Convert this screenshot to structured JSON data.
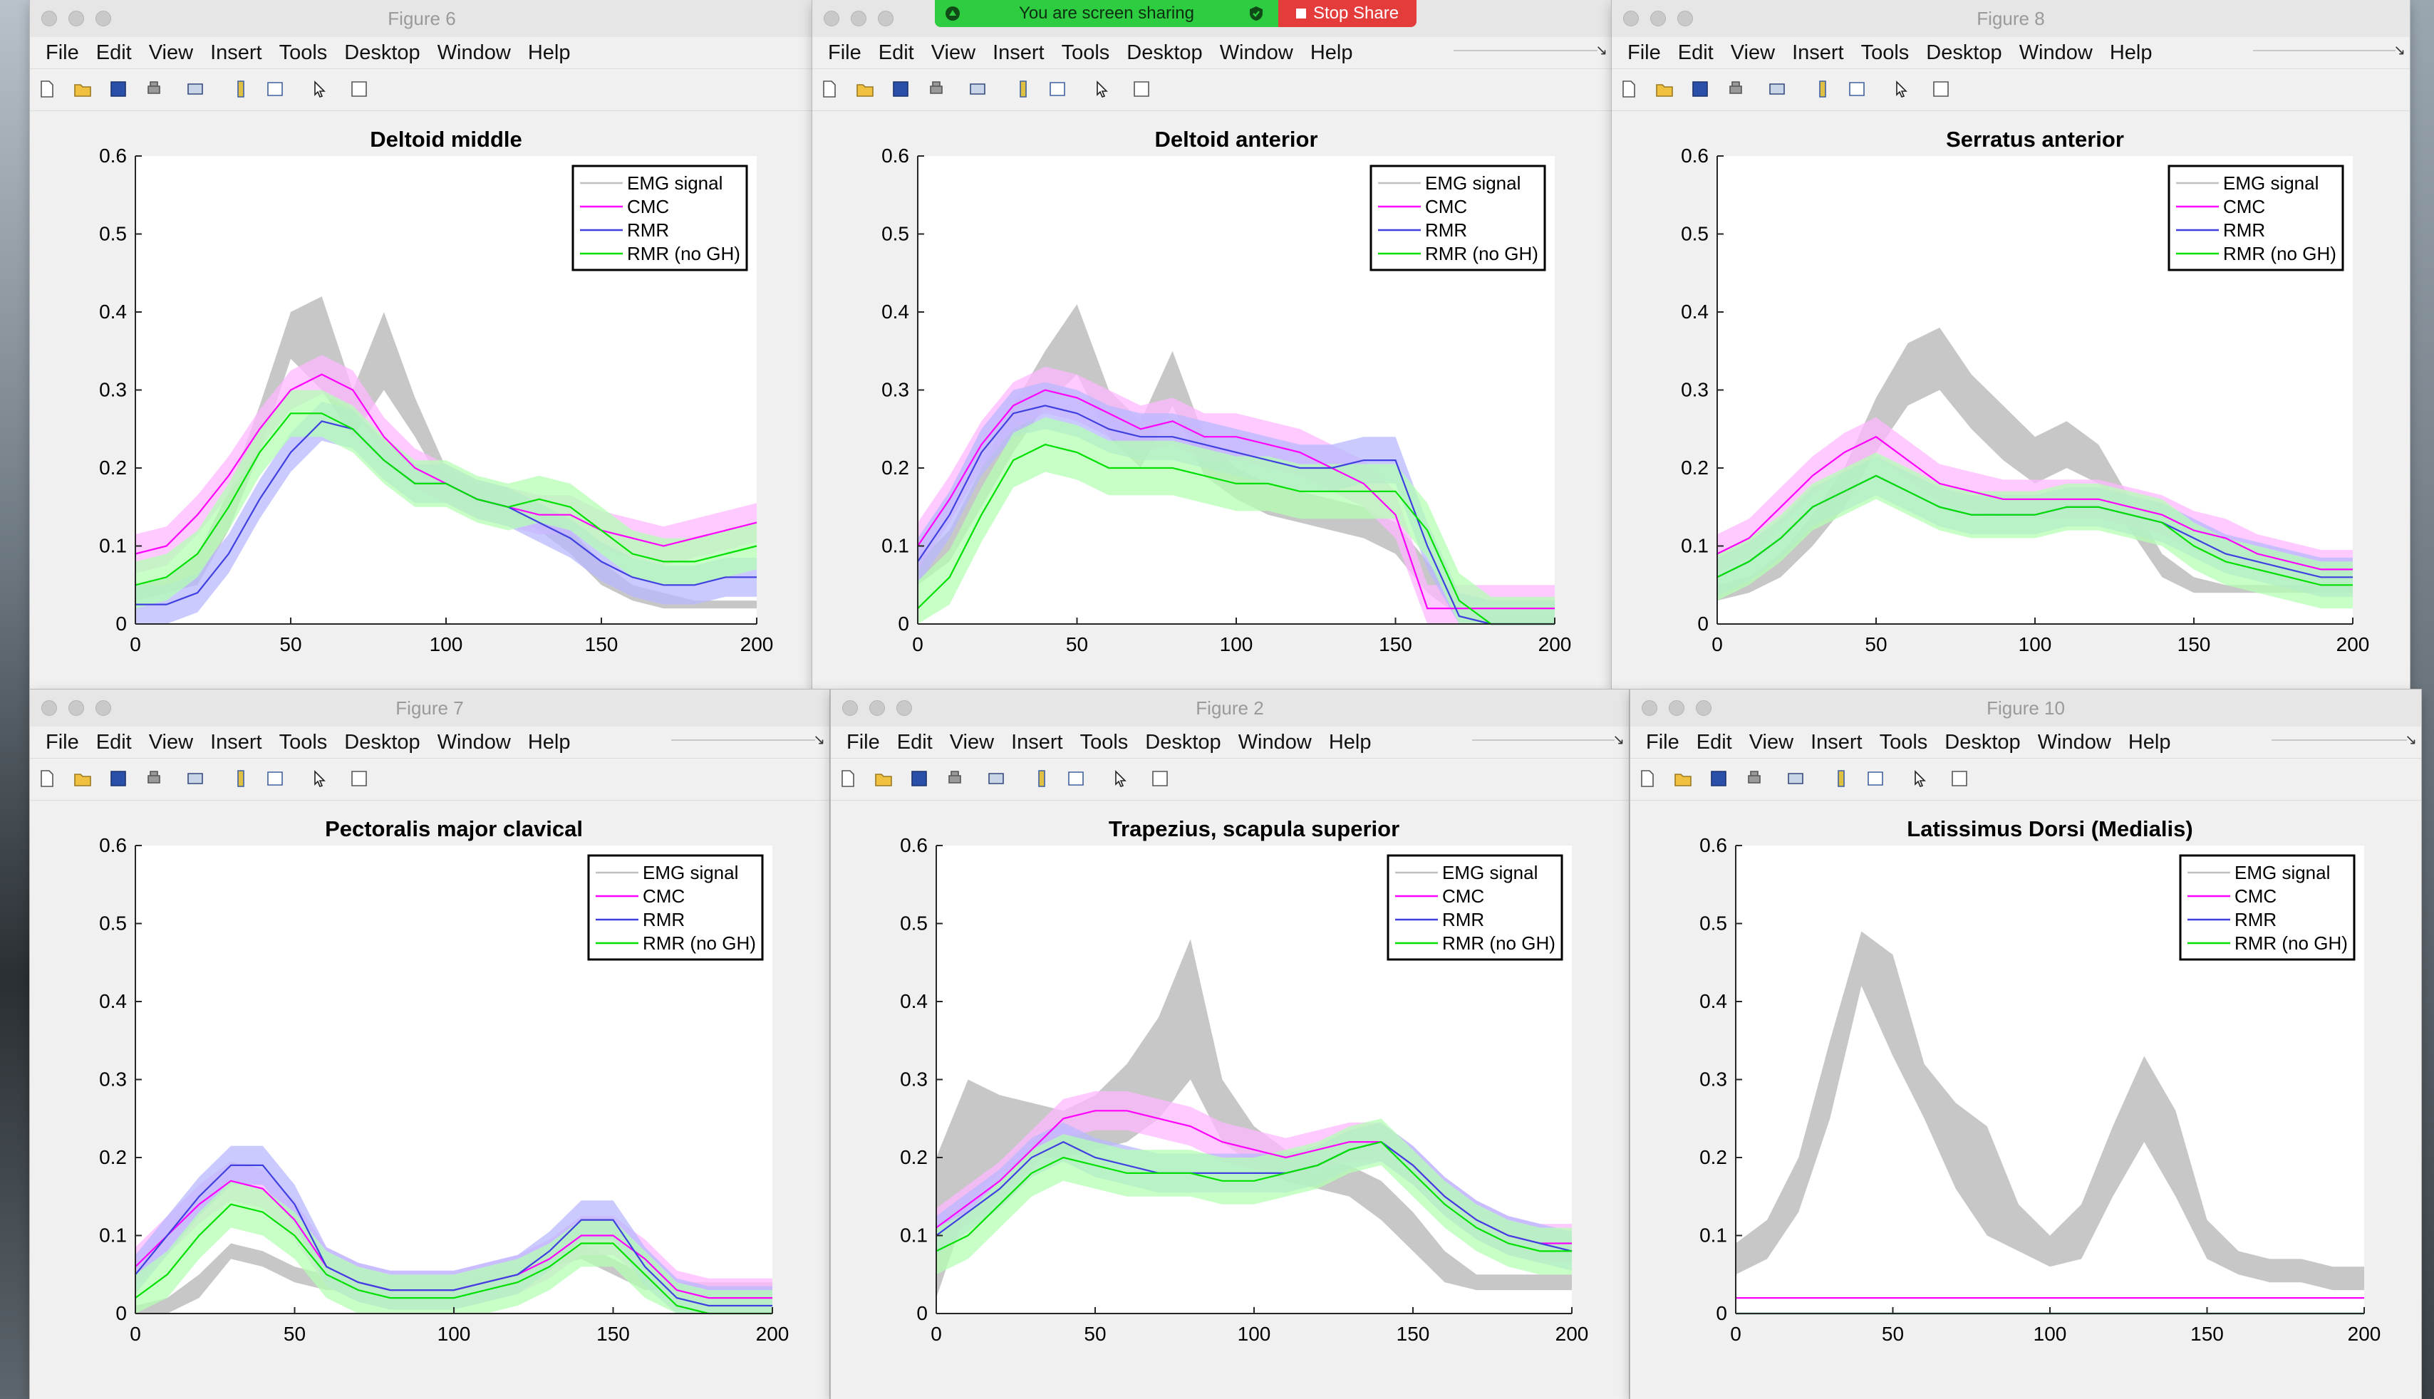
{
  "screen_share": {
    "message": "You are screen sharing",
    "stop_label": "Stop Share",
    "bar_color": "#2ecc40",
    "stop_color": "#e43b3b"
  },
  "menu": [
    "File",
    "Edit",
    "View",
    "Insert",
    "Tools",
    "Desktop",
    "Window",
    "Help"
  ],
  "legend": {
    "labels": [
      "EMG signal",
      "CMC",
      "RMR",
      "RMR (no GH)"
    ],
    "colors": [
      "#c0c0c0",
      "#ff00ff",
      "#4040e0",
      "#00e000"
    ]
  },
  "windows": [
    {
      "id": "fig6",
      "title": "Figure 6",
      "plot_title": "Deltoid middle"
    },
    {
      "id": "fig1",
      "title": "",
      "plot_title": "Deltoid anterior"
    },
    {
      "id": "fig8",
      "title": "Figure 8",
      "plot_title": "Serratus anterior"
    },
    {
      "id": "fig7",
      "title": "Figure 7",
      "plot_title": "Pectoralis major clavical"
    },
    {
      "id": "fig2",
      "title": "Figure 2",
      "plot_title": "Trapezius, scapula superior"
    },
    {
      "id": "fig10",
      "title": "Figure 10",
      "plot_title": "Latissimus Dorsi (Medialis)"
    }
  ],
  "chart_data": [
    {
      "type": "area",
      "title": "Deltoid middle",
      "xlim": [
        0,
        200
      ],
      "ylim": [
        0,
        0.6
      ],
      "xticks": [
        0,
        50,
        100,
        150,
        200
      ],
      "yticks": [
        0,
        0.1,
        0.2,
        0.3,
        0.4,
        0.5,
        0.6
      ],
      "legend": "top-right",
      "x": [
        0,
        10,
        20,
        30,
        40,
        50,
        60,
        70,
        80,
        90,
        100,
        110,
        120,
        130,
        140,
        150,
        160,
        170,
        180,
        190,
        200
      ],
      "series": [
        {
          "name": "EMG signal",
          "lower": [
            0.03,
            0.04,
            0.05,
            0.12,
            0.22,
            0.34,
            0.3,
            0.24,
            0.3,
            0.24,
            0.17,
            0.15,
            0.14,
            0.12,
            0.09,
            0.05,
            0.03,
            0.02,
            0.02,
            0.02,
            0.02
          ],
          "upper": [
            0.05,
            0.06,
            0.09,
            0.17,
            0.28,
            0.4,
            0.42,
            0.3,
            0.4,
            0.29,
            0.2,
            0.18,
            0.17,
            0.15,
            0.12,
            0.08,
            0.05,
            0.04,
            0.03,
            0.03,
            0.03
          ]
        },
        {
          "name": "CMC",
          "mean": [
            0.09,
            0.1,
            0.14,
            0.19,
            0.25,
            0.3,
            0.32,
            0.3,
            0.24,
            0.2,
            0.18,
            0.16,
            0.15,
            0.14,
            0.14,
            0.12,
            0.11,
            0.1,
            0.11,
            0.12,
            0.13
          ],
          "band": 0.025
        },
        {
          "name": "RMR",
          "mean": [
            0.025,
            0.025,
            0.04,
            0.09,
            0.16,
            0.22,
            0.26,
            0.25,
            0.21,
            0.18,
            0.18,
            0.16,
            0.15,
            0.13,
            0.11,
            0.08,
            0.06,
            0.05,
            0.05,
            0.06,
            0.06
          ],
          "band": 0.025
        },
        {
          "name": "RMR (no GH)",
          "mean": [
            0.05,
            0.06,
            0.09,
            0.15,
            0.22,
            0.27,
            0.27,
            0.25,
            0.21,
            0.18,
            0.18,
            0.16,
            0.15,
            0.16,
            0.15,
            0.12,
            0.09,
            0.08,
            0.08,
            0.09,
            0.1
          ],
          "band": 0.03
        }
      ]
    },
    {
      "type": "area",
      "title": "Deltoid anterior",
      "xlim": [
        0,
        200
      ],
      "ylim": [
        0,
        0.6
      ],
      "xticks": [
        0,
        50,
        100,
        150,
        200
      ],
      "yticks": [
        0,
        0.1,
        0.2,
        0.3,
        0.4,
        0.5,
        0.6
      ],
      "legend": "top-right",
      "x": [
        0,
        10,
        20,
        30,
        40,
        50,
        60,
        70,
        80,
        90,
        100,
        110,
        120,
        130,
        140,
        150,
        160,
        170,
        180,
        190,
        200
      ],
      "series": [
        {
          "name": "EMG signal",
          "lower": [
            0.05,
            0.08,
            0.15,
            0.22,
            0.28,
            0.32,
            0.24,
            0.2,
            0.28,
            0.19,
            0.16,
            0.14,
            0.13,
            0.12,
            0.11,
            0.09,
            0.04,
            0.01,
            0.0,
            0.0,
            0.0
          ],
          "upper": [
            0.08,
            0.12,
            0.2,
            0.28,
            0.35,
            0.41,
            0.3,
            0.26,
            0.35,
            0.24,
            0.2,
            0.18,
            0.17,
            0.16,
            0.15,
            0.13,
            0.08,
            0.03,
            0.01,
            0.01,
            0.01
          ]
        },
        {
          "name": "CMC",
          "mean": [
            0.1,
            0.16,
            0.23,
            0.28,
            0.3,
            0.29,
            0.27,
            0.25,
            0.26,
            0.24,
            0.24,
            0.23,
            0.22,
            0.2,
            0.18,
            0.14,
            0.02,
            0.02,
            0.02,
            0.02,
            0.02
          ],
          "band": 0.03
        },
        {
          "name": "RMR",
          "mean": [
            0.08,
            0.14,
            0.22,
            0.27,
            0.28,
            0.27,
            0.25,
            0.24,
            0.24,
            0.23,
            0.22,
            0.21,
            0.2,
            0.2,
            0.21,
            0.21,
            0.1,
            0.01,
            0.0,
            0.0,
            0.0
          ],
          "band": 0.03
        },
        {
          "name": "RMR (no GH)",
          "mean": [
            0.02,
            0.06,
            0.14,
            0.21,
            0.23,
            0.22,
            0.2,
            0.2,
            0.2,
            0.19,
            0.18,
            0.18,
            0.17,
            0.17,
            0.17,
            0.17,
            0.12,
            0.03,
            0.0,
            0.0,
            0.0
          ],
          "band": 0.035
        }
      ]
    },
    {
      "type": "area",
      "title": "Serratus anterior",
      "xlim": [
        0,
        200
      ],
      "ylim": [
        0,
        0.6
      ],
      "xticks": [
        0,
        50,
        100,
        150,
        200
      ],
      "yticks": [
        0,
        0.1,
        0.2,
        0.3,
        0.4,
        0.5,
        0.6
      ],
      "legend": "top-right",
      "x": [
        0,
        10,
        20,
        30,
        40,
        50,
        60,
        70,
        80,
        90,
        100,
        110,
        120,
        130,
        140,
        150,
        160,
        170,
        180,
        190,
        200
      ],
      "series": [
        {
          "name": "EMG signal",
          "lower": [
            0.03,
            0.04,
            0.06,
            0.1,
            0.15,
            0.22,
            0.28,
            0.3,
            0.25,
            0.21,
            0.18,
            0.2,
            0.18,
            0.12,
            0.06,
            0.04,
            0.04,
            0.04,
            0.04,
            0.04,
            0.04
          ],
          "upper": [
            0.05,
            0.06,
            0.09,
            0.14,
            0.2,
            0.29,
            0.36,
            0.38,
            0.32,
            0.28,
            0.24,
            0.26,
            0.23,
            0.16,
            0.09,
            0.06,
            0.05,
            0.05,
            0.05,
            0.05,
            0.05
          ]
        },
        {
          "name": "CMC",
          "mean": [
            0.09,
            0.11,
            0.15,
            0.19,
            0.22,
            0.24,
            0.21,
            0.18,
            0.17,
            0.16,
            0.16,
            0.16,
            0.16,
            0.15,
            0.14,
            0.12,
            0.11,
            0.09,
            0.08,
            0.07,
            0.07
          ],
          "band": 0.025
        },
        {
          "name": "RMR",
          "mean": [
            0.06,
            0.08,
            0.11,
            0.15,
            0.17,
            0.19,
            0.17,
            0.15,
            0.14,
            0.14,
            0.14,
            0.15,
            0.15,
            0.14,
            0.13,
            0.11,
            0.09,
            0.08,
            0.07,
            0.06,
            0.06
          ],
          "band": 0.025
        },
        {
          "name": "RMR (no GH)",
          "mean": [
            0.06,
            0.08,
            0.11,
            0.15,
            0.17,
            0.19,
            0.17,
            0.15,
            0.14,
            0.14,
            0.14,
            0.15,
            0.15,
            0.14,
            0.13,
            0.1,
            0.08,
            0.07,
            0.06,
            0.05,
            0.05
          ],
          "band": 0.03
        }
      ]
    },
    {
      "type": "area",
      "title": "Pectoralis major clavical",
      "xlim": [
        0,
        200
      ],
      "ylim": [
        0,
        0.6
      ],
      "xticks": [
        0,
        50,
        100,
        150,
        200
      ],
      "yticks": [
        0,
        0.1,
        0.2,
        0.3,
        0.4,
        0.5,
        0.6
      ],
      "legend": "top-right",
      "x": [
        0,
        10,
        20,
        30,
        40,
        50,
        60,
        70,
        80,
        90,
        100,
        110,
        120,
        130,
        140,
        150,
        160,
        170,
        180,
        190,
        200
      ],
      "series": [
        {
          "name": "EMG signal",
          "lower": [
            0.0,
            0.0,
            0.02,
            0.07,
            0.06,
            0.04,
            0.03,
            0.03,
            0.03,
            0.03,
            0.03,
            0.03,
            0.04,
            0.06,
            0.07,
            0.05,
            0.03,
            0.03,
            0.03,
            0.03,
            0.03
          ],
          "upper": [
            0.01,
            0.02,
            0.05,
            0.09,
            0.08,
            0.06,
            0.05,
            0.04,
            0.04,
            0.04,
            0.04,
            0.05,
            0.06,
            0.08,
            0.09,
            0.07,
            0.05,
            0.04,
            0.04,
            0.04,
            0.04
          ]
        },
        {
          "name": "CMC",
          "mean": [
            0.06,
            0.1,
            0.14,
            0.17,
            0.16,
            0.12,
            0.06,
            0.04,
            0.03,
            0.03,
            0.03,
            0.04,
            0.05,
            0.07,
            0.1,
            0.1,
            0.07,
            0.03,
            0.02,
            0.02,
            0.02
          ],
          "band": 0.025
        },
        {
          "name": "RMR",
          "mean": [
            0.05,
            0.1,
            0.15,
            0.19,
            0.19,
            0.14,
            0.06,
            0.04,
            0.03,
            0.03,
            0.03,
            0.04,
            0.05,
            0.08,
            0.12,
            0.12,
            0.06,
            0.02,
            0.01,
            0.01,
            0.01
          ],
          "band": 0.025
        },
        {
          "name": "RMR (no GH)",
          "mean": [
            0.02,
            0.05,
            0.1,
            0.14,
            0.13,
            0.1,
            0.05,
            0.03,
            0.02,
            0.02,
            0.02,
            0.03,
            0.04,
            0.06,
            0.09,
            0.09,
            0.05,
            0.01,
            0.0,
            0.0,
            0.0
          ],
          "band": 0.03
        }
      ]
    },
    {
      "type": "area",
      "title": "Trapezius, scapula superior",
      "xlim": [
        0,
        200
      ],
      "ylim": [
        0,
        0.6
      ],
      "xticks": [
        0,
        50,
        100,
        150,
        200
      ],
      "yticks": [
        0,
        0.1,
        0.2,
        0.3,
        0.4,
        0.5,
        0.6
      ],
      "legend": "top-right",
      "x": [
        0,
        10,
        20,
        30,
        40,
        50,
        60,
        70,
        80,
        90,
        100,
        110,
        120,
        130,
        140,
        150,
        160,
        170,
        180,
        190,
        200
      ],
      "series": [
        {
          "name": "EMG signal",
          "lower": [
            0.02,
            0.14,
            0.18,
            0.2,
            0.2,
            0.21,
            0.22,
            0.25,
            0.3,
            0.22,
            0.19,
            0.17,
            0.16,
            0.15,
            0.12,
            0.08,
            0.04,
            0.03,
            0.03,
            0.03,
            0.03
          ],
          "upper": [
            0.2,
            0.3,
            0.28,
            0.27,
            0.26,
            0.28,
            0.32,
            0.38,
            0.48,
            0.3,
            0.24,
            0.21,
            0.2,
            0.19,
            0.17,
            0.13,
            0.08,
            0.05,
            0.05,
            0.05,
            0.05
          ]
        },
        {
          "name": "CMC",
          "mean": [
            0.11,
            0.14,
            0.17,
            0.21,
            0.25,
            0.26,
            0.26,
            0.25,
            0.24,
            0.22,
            0.21,
            0.2,
            0.21,
            0.22,
            0.22,
            0.19,
            0.15,
            0.12,
            0.1,
            0.09,
            0.09
          ],
          "band": 0.025
        },
        {
          "name": "RMR",
          "mean": [
            0.1,
            0.13,
            0.16,
            0.2,
            0.22,
            0.2,
            0.19,
            0.18,
            0.18,
            0.18,
            0.18,
            0.18,
            0.19,
            0.21,
            0.22,
            0.19,
            0.15,
            0.12,
            0.1,
            0.09,
            0.08
          ],
          "band": 0.025
        },
        {
          "name": "RMR (no GH)",
          "mean": [
            0.08,
            0.1,
            0.14,
            0.18,
            0.2,
            0.19,
            0.18,
            0.18,
            0.18,
            0.17,
            0.17,
            0.18,
            0.19,
            0.21,
            0.22,
            0.18,
            0.14,
            0.11,
            0.09,
            0.08,
            0.08
          ],
          "band": 0.03
        }
      ]
    },
    {
      "type": "area",
      "title": "Latissimus Dorsi (Medialis)",
      "xlim": [
        0,
        200
      ],
      "ylim": [
        0,
        0.6
      ],
      "xticks": [
        0,
        50,
        100,
        150,
        200
      ],
      "yticks": [
        0,
        0.1,
        0.2,
        0.3,
        0.4,
        0.5,
        0.6
      ],
      "legend": "top-right",
      "x": [
        0,
        10,
        20,
        30,
        40,
        50,
        60,
        70,
        80,
        90,
        100,
        110,
        120,
        130,
        140,
        150,
        160,
        170,
        180,
        190,
        200
      ],
      "series": [
        {
          "name": "EMG signal",
          "lower": [
            0.05,
            0.07,
            0.13,
            0.25,
            0.42,
            0.33,
            0.25,
            0.16,
            0.1,
            0.08,
            0.06,
            0.07,
            0.15,
            0.22,
            0.15,
            0.07,
            0.05,
            0.04,
            0.04,
            0.03,
            0.03
          ],
          "upper": [
            0.09,
            0.12,
            0.2,
            0.35,
            0.49,
            0.46,
            0.32,
            0.27,
            0.24,
            0.14,
            0.1,
            0.14,
            0.24,
            0.33,
            0.26,
            0.12,
            0.08,
            0.07,
            0.07,
            0.06,
            0.06
          ]
        },
        {
          "name": "CMC",
          "mean": [
            0.02,
            0.02,
            0.02,
            0.02,
            0.02,
            0.02,
            0.02,
            0.02,
            0.02,
            0.02,
            0.02,
            0.02,
            0.02,
            0.02,
            0.02,
            0.02,
            0.02,
            0.02,
            0.02,
            0.02,
            0.02
          ],
          "band": 0.0
        },
        {
          "name": "RMR",
          "mean": [
            0.0,
            0.0,
            0.0,
            0.0,
            0.0,
            0.0,
            0.0,
            0.0,
            0.0,
            0.0,
            0.0,
            0.0,
            0.0,
            0.0,
            0.0,
            0.0,
            0.0,
            0.0,
            0.0,
            0.0,
            0.0
          ],
          "band": 0.0
        },
        {
          "name": "RMR (no GH)",
          "mean": [
            0.0,
            0.0,
            0.0,
            0.0,
            0.0,
            0.0,
            0.0,
            0.0,
            0.0,
            0.0,
            0.0,
            0.0,
            0.0,
            0.0,
            0.0,
            0.0,
            0.0,
            0.0,
            0.0,
            0.0,
            0.0
          ],
          "band": 0.0
        }
      ]
    }
  ]
}
